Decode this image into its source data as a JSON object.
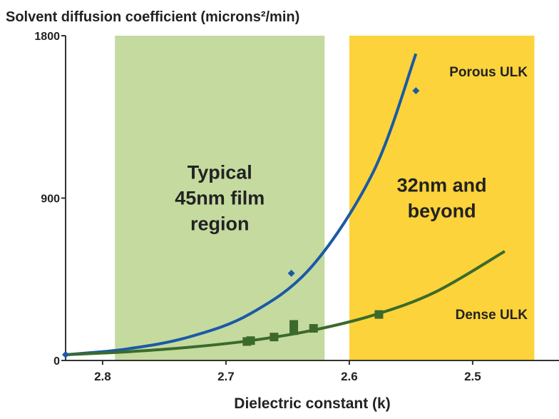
{
  "chart_data": {
    "type": "scatter",
    "title": "Solvent diffusion coefficient (microns²/min)",
    "x_label": "Dielectric constant (k)",
    "xlim": [
      2.83,
      2.43
    ],
    "xticks": [
      2.8,
      2.7,
      2.6,
      2.5
    ],
    "ylim": [
      0,
      1800
    ],
    "yticks": [
      0,
      900,
      1800
    ],
    "regions": [
      {
        "x0": 2.79,
        "x1": 2.62,
        "color": "#c5da9f",
        "label": [
          "Typical",
          "45nm film",
          "region"
        ]
      },
      {
        "x0": 2.6,
        "x1": 2.45,
        "color": "#fcd33a",
        "label": [
          "32nm and",
          "beyond"
        ]
      }
    ],
    "series": [
      {
        "name": "Porous ULK",
        "color": "#1a5aa6",
        "style": "line",
        "x": [
          2.83,
          2.78,
          2.73,
          2.68,
          2.63,
          2.58,
          2.546
        ],
        "values": [
          32,
          64,
          130,
          260,
          524,
          1053,
          1700
        ]
      },
      {
        "name": "Dense ULK",
        "color": "#3b6a2c",
        "style": "line",
        "x": [
          2.83,
          2.78,
          2.73,
          2.68,
          2.63,
          2.58,
          2.53,
          2.474
        ],
        "values": [
          32,
          48,
          73,
          110,
          167,
          252,
          380,
          605
        ]
      },
      {
        "color": "#1a5aa6",
        "style": "diamond",
        "x": [
          2.83,
          2.647,
          2.546
        ],
        "values": [
          32,
          483,
          1495
        ]
      },
      {
        "color": "#3b6a2c",
        "style": "square",
        "x": [
          2.683,
          2.68,
          2.661,
          2.645,
          2.645,
          2.629,
          2.576
        ],
        "values": [
          105,
          110,
          130,
          165,
          200,
          178,
          255
        ]
      }
    ]
  }
}
